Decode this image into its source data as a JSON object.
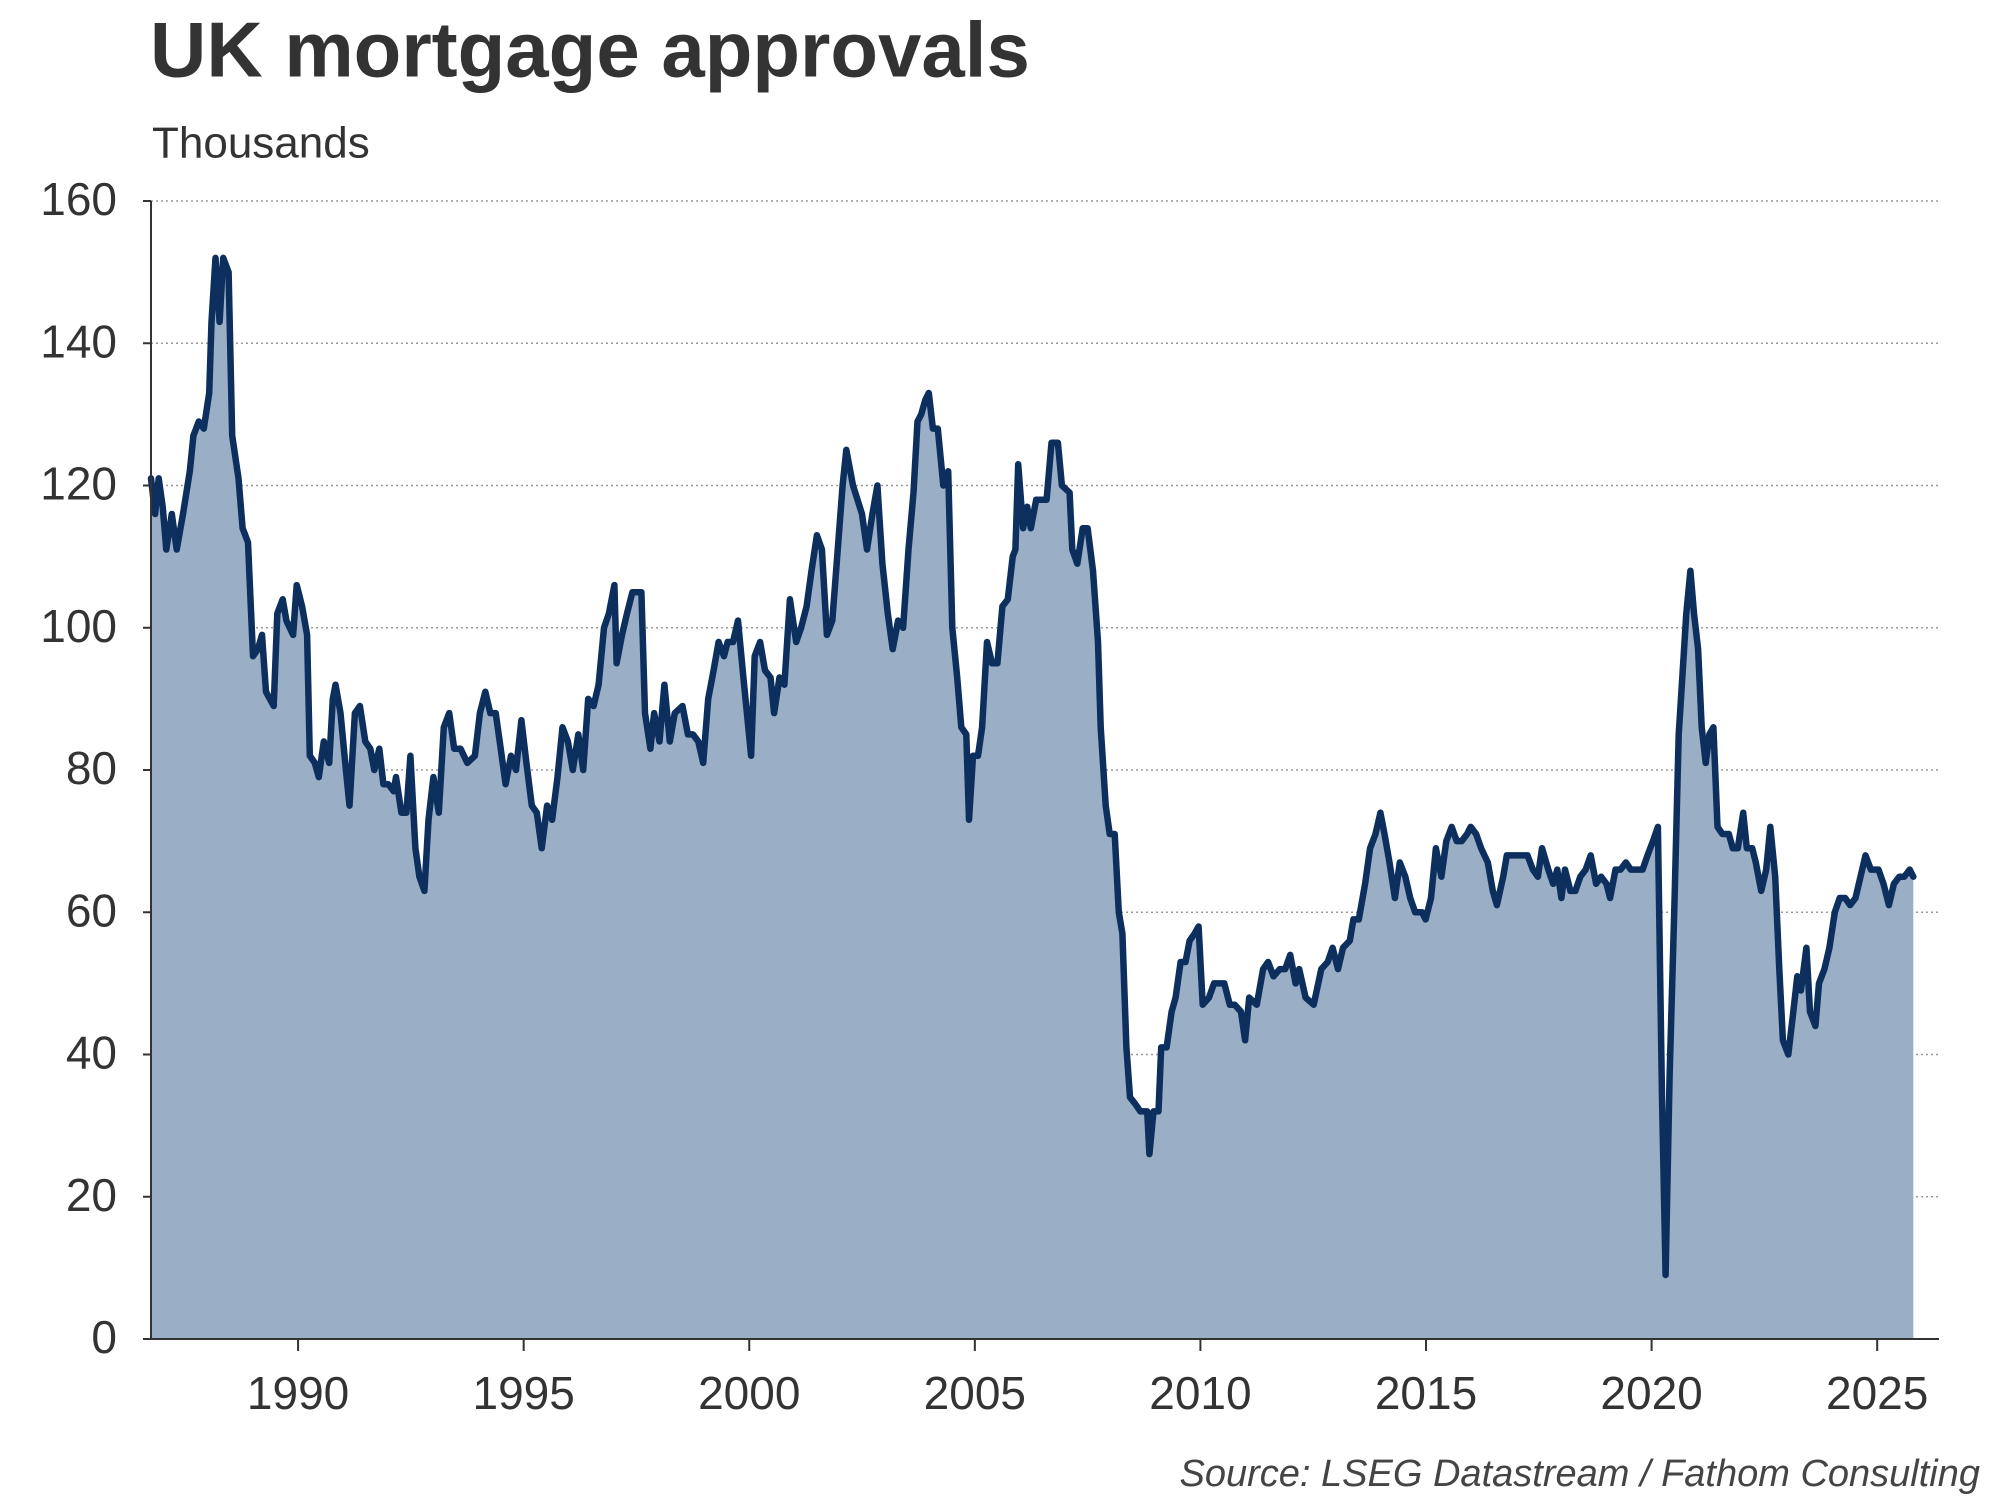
{
  "chart_data": {
    "type": "area",
    "title": "UK mortgage approvals",
    "subtitle": "Thousands",
    "source": "Source: LSEG Datastream / Fathom Consulting",
    "color": "#0c2f5e",
    "area_color": "#9aaec5",
    "grid": true,
    "xlim": [
      1986.74,
      2026.37
    ],
    "xticks": [
      1990,
      1995,
      2000,
      2005,
      2010,
      2015,
      2020,
      2025
    ],
    "ylim": [
      0,
      160
    ],
    "yticks": [
      0,
      20,
      40,
      60,
      80,
      100,
      120,
      140,
      160
    ],
    "x": [
      1986.74,
      1986.83,
      1986.91,
      1987.0,
      1987.08,
      1987.2,
      1987.31,
      1987.45,
      1987.6,
      1987.68,
      1987.8,
      1987.91,
      1988.03,
      1988.08,
      1988.17,
      1988.26,
      1988.34,
      1988.46,
      1988.54,
      1988.68,
      1988.77,
      1988.89,
      1989.0,
      1989.11,
      1989.2,
      1989.29,
      1989.46,
      1989.54,
      1989.66,
      1989.74,
      1989.89,
      1989.97,
      1990.09,
      1990.2,
      1990.26,
      1990.37,
      1990.46,
      1990.57,
      1990.69,
      1990.77,
      1990.83,
      1990.94,
      1991.06,
      1991.14,
      1991.26,
      1991.37,
      1991.49,
      1991.6,
      1991.69,
      1991.8,
      1991.89,
      1992.0,
      1992.12,
      1992.17,
      1992.29,
      1992.4,
      1992.49,
      1992.6,
      1992.69,
      1992.8,
      1992.89,
      1993.0,
      1993.12,
      1993.23,
      1993.35,
      1993.46,
      1993.6,
      1993.75,
      1993.92,
      1994.03,
      1994.15,
      1994.26,
      1994.38,
      1994.49,
      1994.6,
      1994.72,
      1994.83,
      1994.95,
      1995.06,
      1995.18,
      1995.29,
      1995.4,
      1995.52,
      1995.63,
      1995.75,
      1995.86,
      1995.98,
      1996.09,
      1996.21,
      1996.32,
      1996.43,
      1996.55,
      1996.66,
      1996.78,
      1996.89,
      1997.01,
      1997.06,
      1997.18,
      1997.29,
      1997.41,
      1997.61,
      1997.69,
      1997.81,
      1997.89,
      1998.01,
      1998.12,
      1998.24,
      1998.35,
      1998.52,
      1998.64,
      1998.75,
      1998.87,
      1998.98,
      1999.09,
      1999.21,
      1999.32,
      1999.44,
      1999.52,
      1999.64,
      1999.75,
      1999.87,
      2000.04,
      2000.12,
      2000.24,
      2000.35,
      2000.47,
      2000.55,
      2000.67,
      2000.78,
      2000.9,
      2001.04,
      2001.15,
      2001.27,
      2001.38,
      2001.5,
      2001.61,
      2001.72,
      2001.84,
      2001.95,
      2002.07,
      2002.15,
      2002.3,
      2002.5,
      2002.61,
      2002.73,
      2002.84,
      2002.95,
      2003.07,
      2003.18,
      2003.3,
      2003.41,
      2003.53,
      2003.64,
      2003.73,
      2003.81,
      2003.9,
      2003.98,
      2004.07,
      2004.18,
      2004.3,
      2004.41,
      2004.5,
      2004.61,
      2004.7,
      2004.81,
      2004.87,
      2004.96,
      2005.07,
      2005.16,
      2005.27,
      2005.38,
      2005.5,
      2005.61,
      2005.73,
      2005.84,
      2005.9,
      2005.96,
      2006.07,
      2006.16,
      2006.24,
      2006.36,
      2006.59,
      2006.7,
      2006.84,
      2006.93,
      2007.1,
      2007.16,
      2007.27,
      2007.39,
      2007.5,
      2007.62,
      2007.73,
      2007.79,
      2007.9,
      2007.99,
      2008.1,
      2008.19,
      2008.27,
      2008.36,
      2008.44,
      2008.56,
      2008.67,
      2008.82,
      2008.87,
      2008.96,
      2009.07,
      2009.13,
      2009.25,
      2009.36,
      2009.45,
      2009.56,
      2009.67,
      2009.76,
      2009.87,
      2009.96,
      2010.05,
      2010.19,
      2010.3,
      2010.53,
      2010.65,
      2010.76,
      2010.9,
      2010.99,
      2011.08,
      2011.25,
      2011.39,
      2011.5,
      2011.62,
      2011.76,
      2011.88,
      2011.99,
      2012.11,
      2012.19,
      2012.33,
      2012.51,
      2012.68,
      2012.82,
      2012.93,
      2013.05,
      2013.16,
      2013.31,
      2013.39,
      2013.51,
      2013.65,
      2013.76,
      2013.88,
      2013.99,
      2014.08,
      2014.19,
      2014.31,
      2014.42,
      2014.54,
      2014.65,
      2014.76,
      2014.91,
      2014.99,
      2015.11,
      2015.22,
      2015.34,
      2015.45,
      2015.57,
      2015.68,
      2015.79,
      2015.91,
      2015.99,
      2016.11,
      2016.22,
      2016.37,
      2016.48,
      2016.57,
      2016.71,
      2016.79,
      2017.08,
      2017.25,
      2017.37,
      2017.48,
      2017.57,
      2017.71,
      2017.82,
      2017.91,
      2018.0,
      2018.08,
      2018.2,
      2018.31,
      2018.42,
      2018.54,
      2018.65,
      2018.77,
      2018.88,
      2019.0,
      2019.08,
      2019.2,
      2019.31,
      2019.43,
      2019.54,
      2019.65,
      2019.8,
      2019.91,
      2020.03,
      2020.14,
      2020.23,
      2020.31,
      2020.4,
      2020.51,
      2020.6,
      2020.68,
      2020.77,
      2020.86,
      2020.94,
      2021.03,
      2021.11,
      2021.2,
      2021.28,
      2021.37,
      2021.46,
      2021.57,
      2021.71,
      2021.8,
      2021.91,
      2022.03,
      2022.11,
      2022.23,
      2022.31,
      2022.43,
      2022.54,
      2022.63,
      2022.74,
      2022.83,
      2022.91,
      2023.03,
      2023.14,
      2023.23,
      2023.31,
      2023.43,
      2023.51,
      2023.63,
      2023.71,
      2023.83,
      2023.94,
      2024.06,
      2024.17,
      2024.29,
      2024.4,
      2024.52,
      2024.63,
      2024.74,
      2024.86,
      2025.03,
      2025.14,
      2025.26,
      2025.37,
      2025.49,
      2025.6,
      2025.72,
      2025.8
    ],
    "values": [
      121,
      116,
      121,
      117,
      111,
      116,
      111,
      116,
      122,
      127,
      129,
      128,
      133,
      143,
      152,
      143,
      152,
      150,
      127,
      121,
      114,
      112,
      96,
      97,
      99,
      91,
      89,
      102,
      104,
      101,
      99,
      106,
      103,
      99,
      82,
      81,
      79,
      84,
      81,
      90,
      92,
      88,
      80,
      75,
      88,
      89,
      84,
      83,
      80,
      83,
      78,
      78,
      77,
      79,
      74,
      74,
      82,
      69,
      65,
      63,
      73,
      79,
      74,
      86,
      88,
      83,
      83,
      81,
      82,
      88,
      91,
      88,
      88,
      83,
      78,
      82,
      80,
      87,
      81,
      75,
      74,
      69,
      75,
      73,
      79,
      86,
      84,
      80,
      85,
      80,
      90,
      89,
      92,
      100,
      102,
      106,
      95,
      99,
      102,
      105,
      105,
      88,
      83,
      88,
      84,
      92,
      84,
      88,
      89,
      85,
      85,
      84,
      81,
      90,
      94,
      98,
      96,
      98,
      98,
      101,
      93,
      82,
      96,
      98,
      94,
      93,
      88,
      93,
      92,
      104,
      98,
      100,
      103,
      108,
      113,
      111,
      99,
      101,
      110,
      120,
      125,
      120,
      116,
      111,
      116,
      120,
      109,
      102,
      97,
      101,
      100,
      111,
      119,
      129,
      130,
      132,
      133,
      128,
      128,
      120,
      122,
      100,
      93,
      86,
      85,
      73,
      82,
      82,
      86,
      98,
      95,
      95,
      103,
      104,
      110,
      111,
      123,
      114,
      117,
      114,
      118,
      118,
      126,
      126,
      120,
      119,
      111,
      109,
      114,
      114,
      108,
      98,
      86,
      75,
      71,
      71,
      60,
      57,
      41,
      34,
      33,
      32,
      32,
      26,
      32,
      32,
      41,
      41,
      46,
      48,
      53,
      53,
      56,
      57,
      58,
      47,
      48,
      50,
      50,
      47,
      47,
      46,
      42,
      48,
      47,
      52,
      53,
      51,
      52,
      52,
      54,
      50,
      52,
      48,
      47,
      52,
      53,
      55,
      52,
      55,
      56,
      59,
      59,
      64,
      69,
      71,
      74,
      71,
      67,
      62,
      67,
      65,
      62,
      60,
      60,
      59,
      62,
      69,
      65,
      70,
      72,
      70,
      70,
      71,
      72,
      71,
      69,
      67,
      63,
      61,
      65,
      68,
      68,
      68,
      66,
      65,
      69,
      66,
      64,
      66,
      62,
      66,
      63,
      63,
      65,
      66,
      68,
      64,
      65,
      64,
      62,
      66,
      66,
      67,
      66,
      66,
      66,
      68,
      70,
      72,
      34,
      9,
      37,
      62,
      85,
      93,
      102,
      108,
      102,
      97,
      86,
      81,
      85,
      86,
      72,
      71,
      71,
      69,
      69,
      74,
      69,
      69,
      67,
      63,
      66,
      72,
      65,
      52,
      42,
      40,
      46,
      51,
      49,
      55,
      46,
      44,
      50,
      52,
      55,
      60,
      62,
      62,
      61,
      62,
      65,
      68,
      66,
      66,
      64,
      61,
      64,
      65,
      65,
      66,
      65
    ]
  }
}
